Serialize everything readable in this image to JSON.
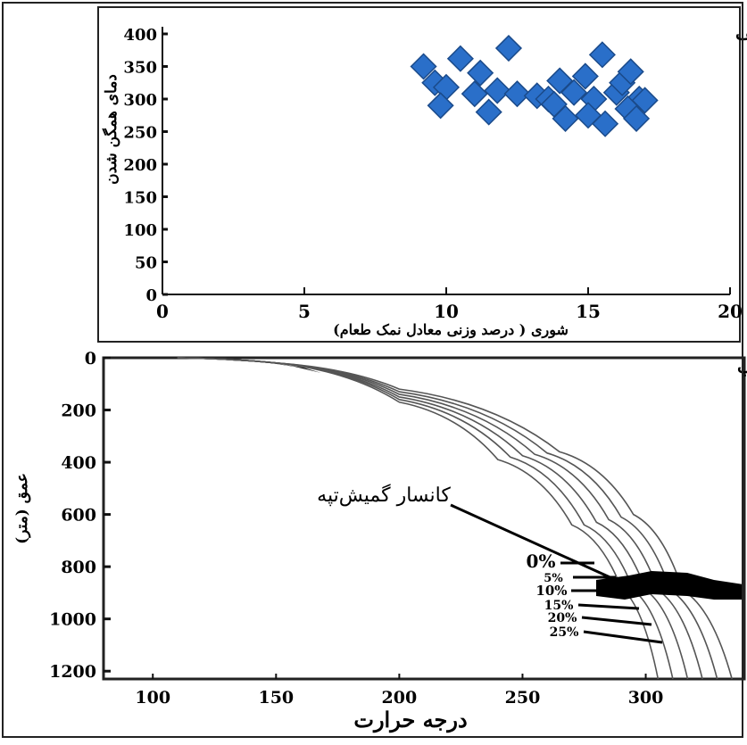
{
  "panel_a": {
    "label": "الف",
    "xlabel": "شوری ( درصد وزنی معادل نمک طعام)",
    "ylabel": "دمای همگن شدن"
  },
  "panel_b": {
    "label": "ب",
    "xlabel": "درجه حرارت",
    "ylabel": "عمق (متر)",
    "annotation": "کانسار گمیش‌تپه"
  },
  "chart_data": [
    {
      "type": "scatter",
      "title": "",
      "xlabel": "شوری ( درصد وزنی معادل نمک طعام)",
      "ylabel": "دمای همگن شدن",
      "xlim": [
        0,
        20
      ],
      "ylim": [
        0,
        400
      ],
      "xticks": [
        0,
        5,
        10,
        15,
        20
      ],
      "yticks": [
        0,
        50,
        100,
        150,
        200,
        250,
        300,
        350,
        400
      ],
      "marker": "diamond",
      "color": "#2a6fc9",
      "points": [
        [
          9.2,
          350
        ],
        [
          9.6,
          325
        ],
        [
          10.0,
          318
        ],
        [
          9.8,
          290
        ],
        [
          10.5,
          362
        ],
        [
          11.2,
          340
        ],
        [
          11.8,
          313
        ],
        [
          11.0,
          308
        ],
        [
          11.5,
          280
        ],
        [
          12.2,
          378
        ],
        [
          12.5,
          308
        ],
        [
          13.2,
          305
        ],
        [
          13.6,
          300
        ],
        [
          14.0,
          328
        ],
        [
          13.8,
          292
        ],
        [
          14.5,
          310
        ],
        [
          14.2,
          270
        ],
        [
          14.9,
          335
        ],
        [
          15.2,
          300
        ],
        [
          15.5,
          368
        ],
        [
          15.0,
          275
        ],
        [
          15.6,
          262
        ],
        [
          16.0,
          310
        ],
        [
          16.2,
          325
        ],
        [
          16.5,
          342
        ],
        [
          16.8,
          300
        ],
        [
          16.4,
          285
        ],
        [
          17.0,
          298
        ],
        [
          16.7,
          270
        ]
      ]
    },
    {
      "type": "line",
      "title": "",
      "xlabel": "درجه حرارت",
      "ylabel": "عمق (متر)",
      "xlim": [
        80,
        340
      ],
      "ylim": [
        1230,
        0
      ],
      "xticks": [
        100,
        150,
        200,
        250,
        300
      ],
      "yticks": [
        0,
        200,
        400,
        600,
        800,
        1000,
        1200
      ],
      "series": [
        {
          "name": "0%",
          "x": [
            110,
            150,
            200,
            240,
            270,
            290,
            305
          ],
          "y": [
            0,
            20,
            170,
            390,
            640,
            880,
            1230
          ]
        },
        {
          "name": "5%",
          "x": [
            110,
            150,
            200,
            245,
            275,
            295,
            311
          ],
          "y": [
            0,
            20,
            160,
            380,
            640,
            890,
            1230
          ]
        },
        {
          "name": "10%",
          "x": [
            110,
            150,
            200,
            250,
            280,
            300,
            317
          ],
          "y": [
            0,
            20,
            150,
            375,
            630,
            890,
            1230
          ]
        },
        {
          "name": "15%",
          "x": [
            110,
            150,
            200,
            255,
            285,
            305,
            323
          ],
          "y": [
            0,
            20,
            140,
            370,
            620,
            890,
            1230
          ]
        },
        {
          "name": "20%",
          "x": [
            110,
            150,
            200,
            260,
            290,
            310,
            329
          ],
          "y": [
            0,
            20,
            130,
            365,
            610,
            890,
            1230
          ]
        },
        {
          "name": "25%",
          "x": [
            110,
            150,
            200,
            265,
            295,
            315,
            335
          ],
          "y": [
            0,
            20,
            120,
            360,
            600,
            890,
            1230
          ]
        }
      ]
    }
  ]
}
